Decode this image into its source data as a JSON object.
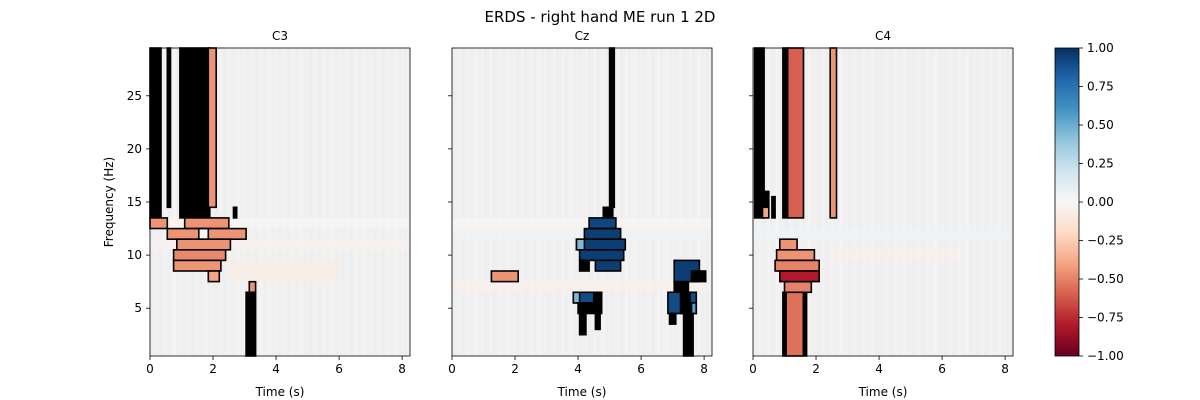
{
  "figure": {
    "title": "ERDS - right hand ME run 1 2D"
  },
  "chart_data": {
    "type": "heatmap",
    "title": "ERDS - right hand ME run 1 2D",
    "xlabel": "Time (s)",
    "ylabel": "Frequency (Hz)",
    "xlim": [
      0,
      8.25
    ],
    "ylim": [
      0.5,
      29.5
    ],
    "xticks": [
      0,
      2,
      4,
      6,
      8
    ],
    "yticks": [
      5,
      10,
      15,
      20,
      25
    ],
    "colormap": "RdBu",
    "colorbar": {
      "vmin": -1.0,
      "vmax": 1.0,
      "ticks": [
        "1.00",
        "0.75",
        "0.50",
        "0.25",
        "0.00",
        "−0.25",
        "−0.50",
        "−0.75",
        "−1.00"
      ],
      "tick_values": [
        1.0,
        0.75,
        0.5,
        0.25,
        0.0,
        -0.25,
        -0.5,
        -0.75,
        -1.0
      ]
    },
    "panels": [
      {
        "name": "C3",
        "background": [
          {
            "x0": 0.0,
            "x1": 8.25,
            "y0": 12.5,
            "y1": 13.5,
            "value": -0.02
          },
          {
            "x0": 0.0,
            "x1": 8.25,
            "y0": 10.5,
            "y1": 11.5,
            "value": -0.04
          },
          {
            "x0": 2.5,
            "x1": 6.0,
            "y0": 7.5,
            "y1": 9.5,
            "value": -0.08
          }
        ],
        "clusters": [
          {
            "x0": 0.0,
            "x1": 0.35,
            "y0": 13.5,
            "y1": 29.5,
            "value": 0.0,
            "masked": true
          },
          {
            "x0": 0.55,
            "x1": 0.65,
            "y0": 14.5,
            "y1": 29.5,
            "value": 0.0,
            "masked": true
          },
          {
            "x0": 0.95,
            "x1": 1.9,
            "y0": 13.5,
            "y1": 29.5,
            "value": 0.0,
            "masked": true
          },
          {
            "x0": 1.85,
            "x1": 2.1,
            "y0": 14.5,
            "y1": 29.5,
            "value": -0.45
          },
          {
            "x0": 0.0,
            "x1": 0.55,
            "y0": 12.5,
            "y1": 13.5,
            "value": -0.45
          },
          {
            "x0": 1.1,
            "x1": 2.5,
            "y0": 12.5,
            "y1": 13.5,
            "value": -0.45
          },
          {
            "x0": 0.55,
            "x1": 3.05,
            "y0": 11.5,
            "y1": 12.5,
            "value": -0.45
          },
          {
            "x0": 1.55,
            "x1": 1.85,
            "y0": 11.5,
            "y1": 12.5,
            "value": 0.0
          },
          {
            "x0": 0.85,
            "x1": 2.55,
            "y0": 10.5,
            "y1": 11.5,
            "value": -0.45
          },
          {
            "x0": 0.75,
            "x1": 2.4,
            "y0": 9.5,
            "y1": 10.5,
            "value": -0.48
          },
          {
            "x0": 0.75,
            "x1": 2.25,
            "y0": 8.5,
            "y1": 9.5,
            "value": -0.45
          },
          {
            "x0": 1.85,
            "x1": 2.2,
            "y0": 7.5,
            "y1": 8.5,
            "value": -0.4
          },
          {
            "x0": 3.15,
            "x1": 3.35,
            "y0": 6.5,
            "y1": 7.5,
            "value": -0.45
          },
          {
            "x0": 3.05,
            "x1": 3.35,
            "y0": 0.5,
            "y1": 6.5,
            "value": 0.0,
            "masked": true
          },
          {
            "x0": 2.65,
            "x1": 2.75,
            "y0": 13.5,
            "y1": 14.5,
            "value": 0.0,
            "masked": true
          }
        ]
      },
      {
        "name": "Cz",
        "background": [
          {
            "x0": 0.0,
            "x1": 8.25,
            "y0": 12.5,
            "y1": 13.5,
            "value": -0.02
          },
          {
            "x0": 0.0,
            "x1": 8.25,
            "y0": 11.5,
            "y1": 12.5,
            "value": 0.04
          },
          {
            "x0": 0.0,
            "x1": 8.25,
            "y0": 6.5,
            "y1": 7.5,
            "value": -0.06
          }
        ],
        "clusters": [
          {
            "x0": 5.0,
            "x1": 5.15,
            "y0": 14.5,
            "y1": 29.5,
            "value": 0.0,
            "masked": true
          },
          {
            "x0": 4.8,
            "x1": 5.1,
            "y0": 13.5,
            "y1": 14.5,
            "value": 0.0,
            "masked": true
          },
          {
            "x0": 4.35,
            "x1": 5.2,
            "y0": 12.5,
            "y1": 13.5,
            "value": 0.92
          },
          {
            "x0": 4.2,
            "x1": 5.35,
            "y0": 11.5,
            "y1": 12.5,
            "value": 0.95
          },
          {
            "x0": 3.95,
            "x1": 5.5,
            "y0": 10.5,
            "y1": 11.5,
            "value": 0.95
          },
          {
            "x0": 3.95,
            "x1": 4.2,
            "y0": 10.5,
            "y1": 11.5,
            "value": 0.45
          },
          {
            "x0": 4.05,
            "x1": 5.45,
            "y0": 9.5,
            "y1": 10.5,
            "value": 0.95
          },
          {
            "x0": 4.55,
            "x1": 5.35,
            "y0": 8.5,
            "y1": 9.5,
            "value": 0.95
          },
          {
            "x0": 4.05,
            "x1": 4.35,
            "y0": 8.5,
            "y1": 9.5,
            "value": 0.0,
            "masked": true
          },
          {
            "x0": 1.25,
            "x1": 2.1,
            "y0": 7.5,
            "y1": 8.5,
            "value": -0.45
          },
          {
            "x0": 3.85,
            "x1": 4.5,
            "y0": 5.5,
            "y1": 6.5,
            "value": 0.9
          },
          {
            "x0": 3.85,
            "x1": 4.05,
            "y0": 5.5,
            "y1": 6.5,
            "value": 0.45
          },
          {
            "x0": 4.5,
            "x1": 4.75,
            "y0": 5.5,
            "y1": 6.5,
            "value": 0.0,
            "masked": true
          },
          {
            "x0": 4.0,
            "x1": 4.75,
            "y0": 4.5,
            "y1": 5.5,
            "value": 0.0,
            "masked": true
          },
          {
            "x0": 4.05,
            "x1": 4.25,
            "y0": 2.5,
            "y1": 4.5,
            "value": 0.0,
            "masked": true
          },
          {
            "x0": 4.55,
            "x1": 4.7,
            "y0": 3.0,
            "y1": 4.5,
            "value": 0.0,
            "masked": true
          },
          {
            "x0": 7.05,
            "x1": 7.85,
            "y0": 7.5,
            "y1": 9.5,
            "value": 0.95
          },
          {
            "x0": 7.6,
            "x1": 8.05,
            "y0": 7.5,
            "y1": 8.5,
            "value": 0.0,
            "masked": true
          },
          {
            "x0": 7.05,
            "x1": 7.5,
            "y0": 6.5,
            "y1": 7.5,
            "value": 0.0,
            "masked": true
          },
          {
            "x0": 6.85,
            "x1": 7.75,
            "y0": 4.5,
            "y1": 6.5,
            "value": 0.9
          },
          {
            "x0": 7.25,
            "x1": 7.55,
            "y0": 4.5,
            "y1": 6.5,
            "value": 0.0,
            "masked": true
          },
          {
            "x0": 7.6,
            "x1": 7.75,
            "y0": 4.5,
            "y1": 5.5,
            "value": 0.55
          },
          {
            "x0": 6.9,
            "x1": 7.1,
            "y0": 3.5,
            "y1": 4.5,
            "value": 0.0,
            "masked": true
          },
          {
            "x0": 7.35,
            "x1": 7.65,
            "y0": 0.5,
            "y1": 4.5,
            "value": 0.0,
            "masked": true
          }
        ]
      },
      {
        "name": "C4",
        "background": [
          {
            "x0": 0.0,
            "x1": 8.25,
            "y0": 11.5,
            "y1": 12.5,
            "value": 0.04
          },
          {
            "x0": 2.5,
            "x1": 6.5,
            "y0": 9.5,
            "y1": 10.5,
            "value": -0.06
          }
        ],
        "clusters": [
          {
            "x0": 0.05,
            "x1": 0.35,
            "y0": 13.5,
            "y1": 29.5,
            "value": 0.0,
            "masked": true
          },
          {
            "x0": 0.25,
            "x1": 0.5,
            "y0": 14.5,
            "y1": 16.0,
            "value": 0.0,
            "masked": true
          },
          {
            "x0": 0.3,
            "x1": 0.5,
            "y0": 13.5,
            "y1": 14.5,
            "value": -0.4
          },
          {
            "x0": 0.6,
            "x1": 0.7,
            "y0": 13.5,
            "y1": 15.5,
            "value": 0.0,
            "masked": true
          },
          {
            "x0": 0.95,
            "x1": 1.1,
            "y0": 13.5,
            "y1": 29.5,
            "value": 0.0,
            "masked": true
          },
          {
            "x0": 1.1,
            "x1": 1.6,
            "y0": 13.5,
            "y1": 29.5,
            "value": -0.6
          },
          {
            "x0": 2.45,
            "x1": 2.65,
            "y0": 13.5,
            "y1": 29.5,
            "value": -0.45
          },
          {
            "x0": 0.85,
            "x1": 1.4,
            "y0": 10.5,
            "y1": 11.5,
            "value": -0.45
          },
          {
            "x0": 0.75,
            "x1": 1.95,
            "y0": 9.5,
            "y1": 10.5,
            "value": -0.45
          },
          {
            "x0": 0.7,
            "x1": 2.1,
            "y0": 8.5,
            "y1": 9.5,
            "value": -0.5
          },
          {
            "x0": 0.85,
            "x1": 2.1,
            "y0": 7.5,
            "y1": 8.5,
            "value": -0.8
          },
          {
            "x0": 1.0,
            "x1": 1.85,
            "y0": 6.5,
            "y1": 7.5,
            "value": -0.5
          },
          {
            "x0": 1.05,
            "x1": 1.6,
            "y0": 0.5,
            "y1": 6.5,
            "value": -0.55
          },
          {
            "x0": 0.95,
            "x1": 1.05,
            "y0": 0.5,
            "y1": 6.5,
            "value": 0.0,
            "masked": true
          },
          {
            "x0": 1.6,
            "x1": 1.7,
            "y0": 0.5,
            "y1": 6.5,
            "value": 0.0,
            "masked": true
          }
        ]
      }
    ]
  }
}
